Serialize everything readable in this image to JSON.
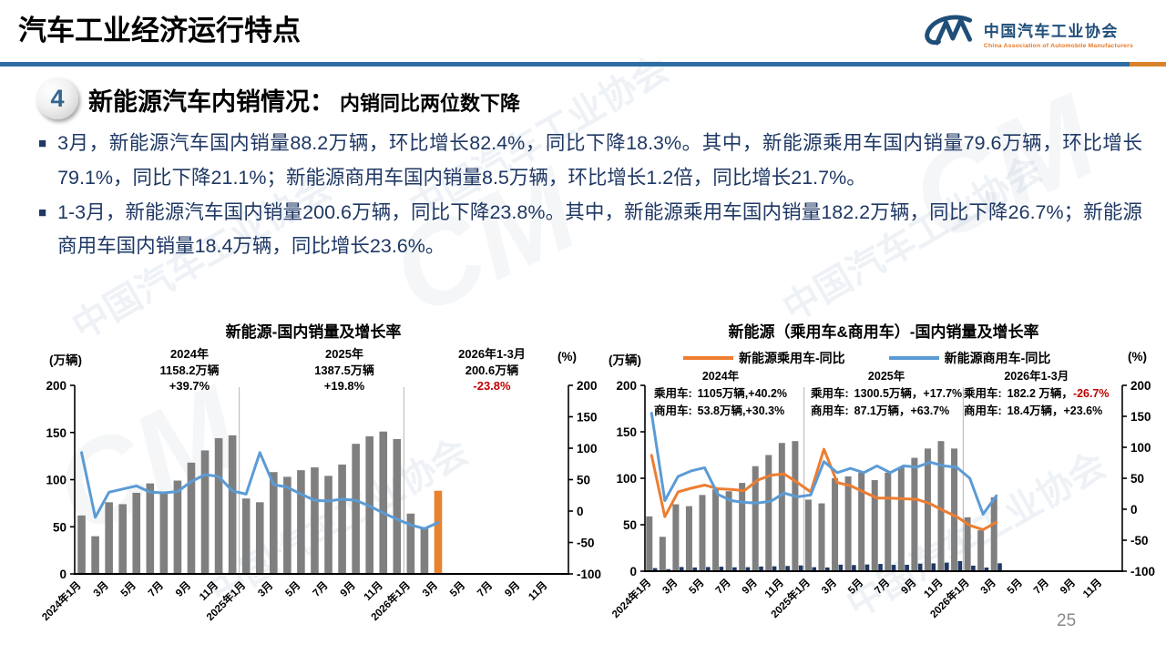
{
  "header": {
    "title": "汽车工业经济运行特点",
    "logo": {
      "name_cn": "中国汽车工业协会",
      "name_en": "China Association of Automobile Manufacturers"
    }
  },
  "watermark": "中国汽车工业协会",
  "section": {
    "number": "4",
    "title": "新能源汽车内销情况：",
    "subtitle": "内销同比两位数下降"
  },
  "bullets": [
    "3月，新能源汽车国内销量88.2万辆，环比增长82.4%，同比下降18.3%。其中，新能源乘用车国内销量79.6万辆，环比增长79.1%，同比下降21.1%；新能源商用车国内销量8.5万辆，环比增长1.2倍，同比增长21.7%。",
    "1-3月，新能源汽车国内销量200.6万辆，同比下降23.8%。其中，新能源乘用车国内销量182.2万辆，同比下降26.7%；新能源商用车国内销量18.4万辆，同比增长23.6%。"
  ],
  "page_number": "25",
  "colors": {
    "bar_gray": "#7F7F7F",
    "bar_highlight_orange": "#E8822D",
    "bar_navy": "#1F3864",
    "line_blue": "#5B9BD5",
    "line_orange": "#ED7D31",
    "divider_blue": "#2E6DA4",
    "divider_orange": "#D9822B",
    "text_navy": "#1F3864",
    "negative_red": "#C00000"
  },
  "chart_data": [
    {
      "type": "bar",
      "title": "新能源-国内销量及增长率",
      "months_total": 36,
      "separators": [
        12,
        24
      ],
      "left_axis": {
        "unit": "(万辆)",
        "range": [
          0,
          200
        ],
        "ticks": [
          200,
          150,
          100,
          50,
          0
        ]
      },
      "right_axis": {
        "unit": "(%)",
        "range": [
          -100,
          200
        ],
        "ticks": [
          200,
          150,
          100,
          50,
          0,
          -50,
          -100
        ]
      },
      "x_labels": [
        "2024年1月",
        "3月",
        "5月",
        "7月",
        "9月",
        "11月",
        "2025年1月",
        "3月",
        "5月",
        "7月",
        "9月",
        "11月",
        "2026年1月",
        "3月",
        "5月",
        "7月",
        "9月",
        "11月"
      ],
      "annotations": [
        {
          "line1": "2024年",
          "line2": "1158.2万辆",
          "line3": "+39.7%"
        },
        {
          "line1": "2025年",
          "line2": "1387.5万辆",
          "line3": "+19.8%"
        },
        {
          "line1": "2026年1-3月",
          "line2": "200.6万辆",
          "line3": "-23.8%"
        }
      ],
      "bar_series": [
        {
          "name": "国内销量(万辆)",
          "color": "#7F7F7F",
          "highlight_last_color": "#E8822D",
          "values": [
            62,
            40,
            76,
            74,
            86,
            96,
            85,
            99,
            118,
            131,
            144,
            147,
            80,
            76,
            108,
            103,
            110,
            113,
            104,
            116,
            138,
            146,
            151,
            143,
            64,
            48,
            88.2
          ]
        }
      ],
      "line_series": [
        {
          "name": "同比增长率(%)",
          "color": "#5B9BD5",
          "values": [
            93,
            -10,
            30,
            35,
            40,
            30,
            29,
            31,
            47,
            58,
            55,
            32,
            27,
            93,
            42,
            38,
            27,
            17,
            16,
            19,
            17,
            8,
            -3,
            -13,
            -22,
            -28,
            -18.3
          ]
        }
      ]
    },
    {
      "type": "bar",
      "title": "新能源（乘用车&商用车）-国内销量及增长率",
      "months_total": 36,
      "separators": [
        12,
        24
      ],
      "left_axis": {
        "unit": "(万辆)",
        "range": [
          0,
          200
        ],
        "ticks": [
          200,
          150,
          100,
          50,
          0
        ]
      },
      "right_axis": {
        "unit": "(%)",
        "range": [
          -100,
          200
        ],
        "ticks": [
          200,
          150,
          100,
          50,
          0,
          -50,
          -100
        ]
      },
      "x_labels": [
        "2024年1月",
        "3月",
        "5月",
        "7月",
        "9月",
        "11月",
        "2025年1月",
        "3月",
        "5月",
        "7月",
        "9月",
        "11月",
        "2026年1月",
        "3月",
        "5月",
        "7月",
        "9月",
        "11月"
      ],
      "legend": [
        {
          "label": "新能源乘用车-同比",
          "color": "#ED7D31"
        },
        {
          "label": "新能源商用车-同比",
          "color": "#5B9BD5"
        }
      ],
      "annotations": [
        {
          "header": "2024年",
          "pv_label": "乘用车:",
          "pv_value": "1105万辆,+40.2%",
          "cv_label": "商用车:",
          "cv_value": "53.8万辆,+30.3%"
        },
        {
          "header": "2025年",
          "pv_label": "乘用车:",
          "pv_value": "1300.5万辆，+17.7%",
          "cv_label": "商用车:",
          "cv_value": "87.1万辆，+63.7%"
        },
        {
          "header": "2026年1-3月",
          "pv_label": "乘用车:",
          "pv_value": "182.2 万辆，",
          "pv_value_red": "-26.7%",
          "cv_label": "商用车:",
          "cv_value": "18.4万辆，+23.6%"
        }
      ],
      "bar_series": [
        {
          "name": "新能源乘用车销量(万辆)",
          "color": "#7F7F7F",
          "values": [
            59,
            37,
            72,
            70,
            82,
            88,
            86,
            95,
            113,
            125,
            138,
            140,
            77,
            73,
            100,
            102,
            106,
            98,
            106,
            112,
            122,
            132,
            140,
            132,
            58,
            44,
            79.6
          ]
        },
        {
          "name": "新能源商用车销量(万辆)",
          "color": "#1F3864",
          "values": [
            3.3,
            2.2,
            4.5,
            4,
            4.5,
            4.8,
            4.2,
            4.3,
            5,
            5.2,
            5.6,
            6.2,
            4.3,
            4,
            7,
            6.6,
            7.2,
            7.8,
            6.8,
            6.9,
            8.1,
            8.4,
            9.2,
            10.8,
            6,
            3.9,
            8.5
          ]
        }
      ],
      "line_series": [
        {
          "name": "新能源乘用车-同比",
          "color": "#ED7D31",
          "values": [
            87,
            -12,
            28,
            34,
            39,
            33,
            32,
            30,
            47,
            55,
            57,
            43,
            28,
            97,
            43,
            38,
            28,
            18,
            18,
            17,
            16,
            9,
            -2,
            -12,
            -26,
            -33,
            -21.1
          ]
        },
        {
          "name": "新能源商用车-同比",
          "color": "#5B9BD5",
          "values": [
            155,
            14,
            53,
            62,
            67,
            24,
            14,
            11,
            10,
            13,
            26,
            20,
            23,
            77,
            59,
            66,
            59,
            70,
            59,
            70,
            68,
            76,
            70,
            68,
            50,
            -8,
            21.7
          ]
        }
      ]
    }
  ]
}
